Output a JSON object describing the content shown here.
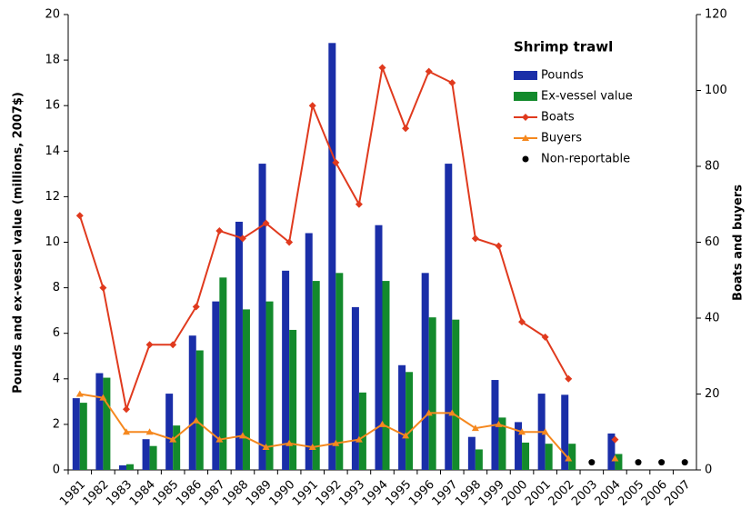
{
  "chart_data": {
    "type": "combo",
    "y_label": "Pounds and ex-vessel value (millions, 2007$)",
    "y2_label": "Boats and buyers",
    "legend_title": "Shrimp trawl",
    "legend": "upper right",
    "categories": [
      "1981",
      "1982",
      "1983",
      "1984",
      "1985",
      "1986",
      "1987",
      "1988",
      "1989",
      "1990",
      "1991",
      "1992",
      "1993",
      "1994",
      "1995",
      "1996",
      "1997",
      "1998",
      "1999",
      "2000",
      "2001",
      "2002",
      "2003",
      "2004",
      "2005",
      "2006",
      "2007"
    ],
    "ylim": [
      0,
      20
    ],
    "yticks": [
      0,
      2,
      4,
      6,
      8,
      10,
      12,
      14,
      16,
      18,
      20
    ],
    "y2lim": [
      0,
      120
    ],
    "y2ticks": [
      0,
      20,
      40,
      60,
      80,
      100,
      120
    ],
    "series": [
      {
        "name": "Pounds",
        "type": "bar",
        "color": "#1a2ea8",
        "values": [
          3.15,
          4.25,
          0.2,
          1.35,
          3.35,
          5.9,
          7.4,
          10.9,
          13.45,
          8.75,
          10.4,
          18.75,
          7.15,
          10.75,
          4.6,
          8.65,
          13.45,
          1.45,
          3.95,
          2.1,
          3.35,
          3.3,
          null,
          1.6,
          null,
          null,
          null
        ]
      },
      {
        "name": "Ex-vessel value",
        "type": "bar",
        "color": "#138a2c",
        "values": [
          2.95,
          4.05,
          0.25,
          1.05,
          1.95,
          5.25,
          8.45,
          7.05,
          7.4,
          6.15,
          8.3,
          8.65,
          3.4,
          8.3,
          4.3,
          6.7,
          6.6,
          0.9,
          2.3,
          1.2,
          1.15,
          1.15,
          null,
          0.7,
          null,
          null,
          null
        ]
      },
      {
        "name": "Boats",
        "type": "line",
        "marker": "diamond",
        "axis": "y2",
        "color": "#e03a1e",
        "values": [
          67,
          48,
          16,
          33,
          33,
          43,
          63,
          61,
          65,
          60,
          96,
          81,
          70,
          106,
          90,
          105,
          102,
          61,
          59,
          39,
          35,
          24,
          null,
          8,
          null,
          null,
          null
        ]
      },
      {
        "name": "Buyers",
        "type": "line",
        "marker": "triangle",
        "axis": "y2",
        "color": "#f5881f",
        "values": [
          20,
          19,
          10,
          10,
          8,
          13,
          8,
          9,
          6,
          7,
          6,
          7,
          8,
          12,
          9,
          15,
          15,
          11,
          12,
          10,
          10,
          3,
          null,
          3,
          null,
          null,
          null
        ]
      },
      {
        "name": "Non-reportable",
        "type": "scatter",
        "marker": "circle",
        "axis": "y2",
        "color": "#000000",
        "values": [
          null,
          null,
          null,
          null,
          null,
          null,
          null,
          null,
          null,
          null,
          null,
          null,
          null,
          null,
          null,
          null,
          null,
          null,
          null,
          null,
          null,
          null,
          2,
          null,
          2,
          2,
          2
        ]
      }
    ]
  }
}
